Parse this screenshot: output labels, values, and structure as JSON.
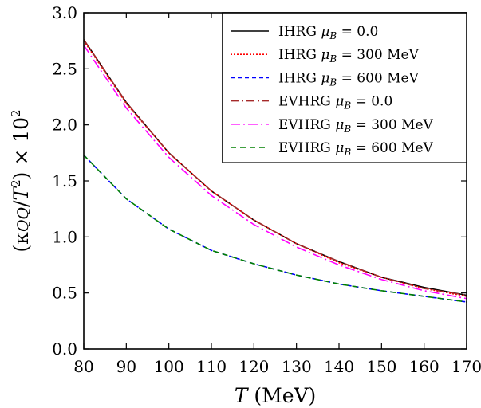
{
  "chart_data": {
    "type": "line",
    "xlabel": {
      "var": "T",
      "unit": " (MeV)"
    },
    "ylabel": {
      "lead": "(κ",
      "mid": "QQ",
      "slash": "/",
      "var": "T",
      "sup": "2",
      "tail": ") × 10",
      "exp": "2"
    },
    "xlim": [
      80,
      170
    ],
    "ylim": [
      0.0,
      3.0
    ],
    "xticks": [
      "80",
      "90",
      "100",
      "110",
      "120",
      "130",
      "140",
      "150",
      "160",
      "170"
    ],
    "yticks": [
      "0.0",
      "0.5",
      "1.0",
      "1.5",
      "2.0",
      "2.5",
      "3.0"
    ],
    "grid": false,
    "legend_position": "top-right",
    "x": [
      80,
      90,
      100,
      110,
      120,
      130,
      140,
      150,
      160,
      170
    ],
    "series": [
      {
        "name": "IHRG μB = 0.0",
        "model": "IHRG",
        "mu_label": "μ",
        "mu_sub": "B",
        "eq": " = 0.0",
        "color": "#000000",
        "dash": "",
        "values": [
          2.76,
          2.2,
          1.75,
          1.41,
          1.15,
          0.94,
          0.78,
          0.64,
          0.55,
          0.48
        ]
      },
      {
        "name": "IHRG μB = 300 MeV",
        "model": "IHRG",
        "mu_label": "μ",
        "mu_sub": "B",
        "eq": " = 300 MeV",
        "color": "#ff0000",
        "dash": "2,2",
        "values": [
          2.75,
          2.19,
          1.75,
          1.41,
          1.15,
          0.94,
          0.77,
          0.64,
          0.54,
          0.47
        ]
      },
      {
        "name": "IHRG μB = 600 MeV",
        "model": "IHRG",
        "mu_label": "μ",
        "mu_sub": "B",
        "eq": " = 600 MeV",
        "color": "#0000ff",
        "dash": "5,4",
        "values": [
          1.73,
          1.34,
          1.07,
          0.88,
          0.76,
          0.66,
          0.58,
          0.52,
          0.47,
          0.42
        ]
      },
      {
        "name": "EVHRG μB = 0.0",
        "model": "EVHRG",
        "mu_label": "μ",
        "mu_sub": "B",
        "eq": " = 0.0",
        "color": "#a52a2a",
        "dash": "10,4,2,4",
        "values": [
          2.76,
          2.2,
          1.75,
          1.41,
          1.15,
          0.94,
          0.78,
          0.64,
          0.54,
          0.48
        ]
      },
      {
        "name": "EVHRG μB = 300 MeV",
        "model": "EVHRG",
        "mu_label": "μ",
        "mu_sub": "B",
        "eq": " = 300 MeV",
        "color": "#ff00ff",
        "dash": "12,4,2,4",
        "values": [
          2.71,
          2.15,
          1.71,
          1.37,
          1.11,
          0.91,
          0.75,
          0.62,
          0.52,
          0.45
        ]
      },
      {
        "name": "EVHRG μB = 600 MeV",
        "model": "EVHRG",
        "mu_label": "μ",
        "mu_sub": "B",
        "eq": " = 600 MeV",
        "color": "#008000",
        "dash": "7,5",
        "values": [
          1.73,
          1.34,
          1.07,
          0.88,
          0.76,
          0.66,
          0.58,
          0.52,
          0.47,
          0.42
        ]
      }
    ]
  }
}
